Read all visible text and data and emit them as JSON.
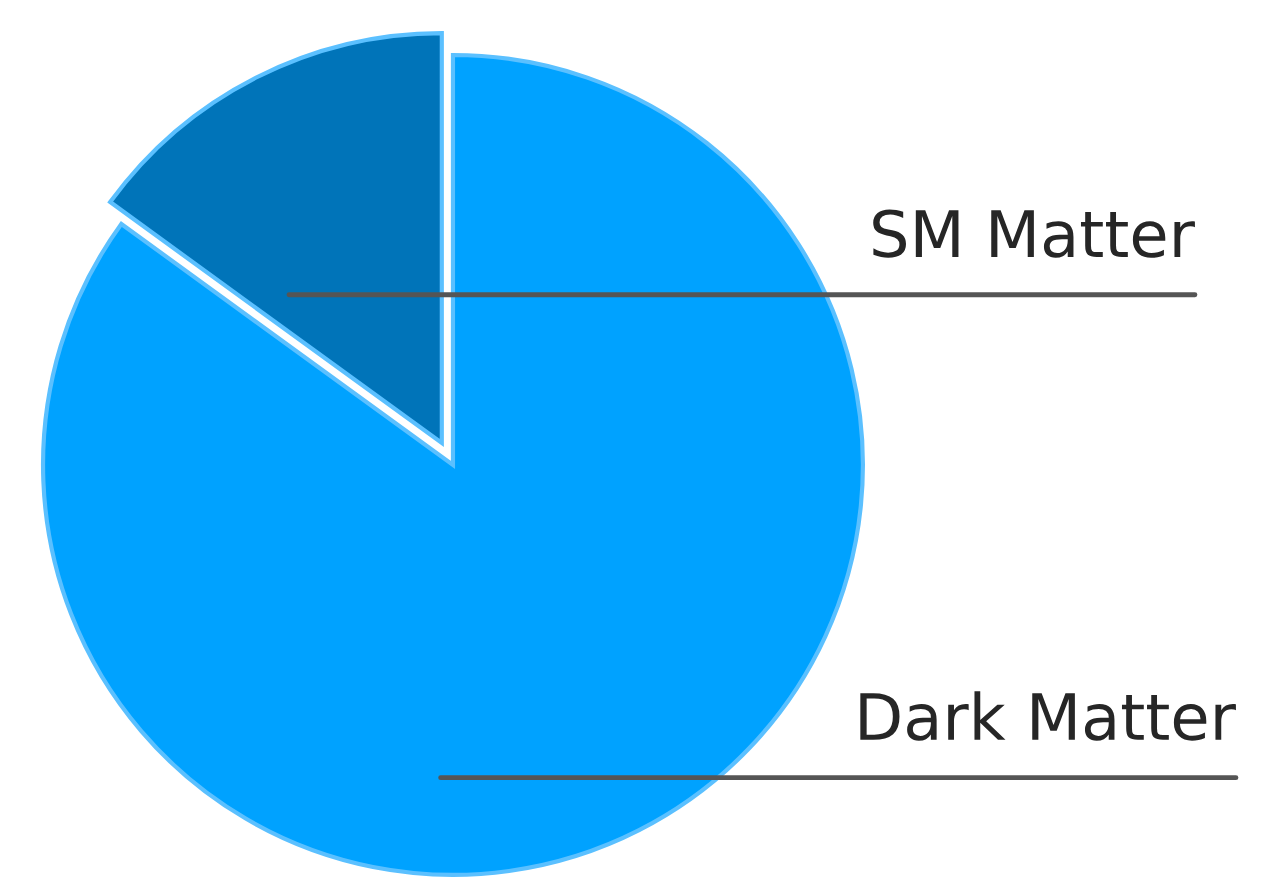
{
  "chart_data": {
    "type": "pie",
    "categories": [
      "SM Matter",
      "Dark Matter"
    ],
    "values": [
      15,
      85
    ],
    "colors": [
      "#0074b9",
      "#00a2ff"
    ]
  }
}
